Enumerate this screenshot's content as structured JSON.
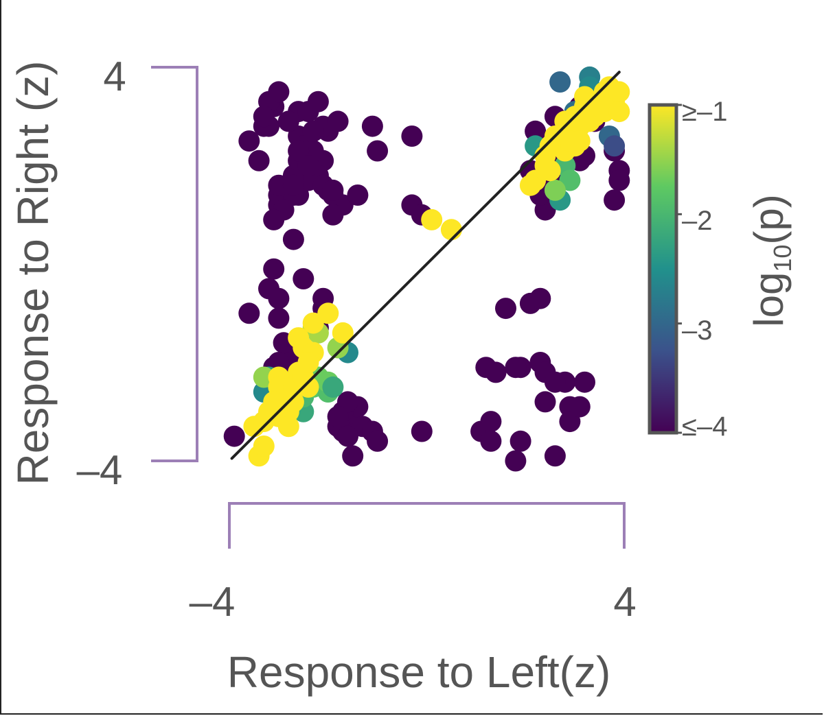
{
  "chart_data": {
    "type": "scatter",
    "title": "",
    "xlabel": "Response to Left(z)",
    "ylabel": "Response to Right (z)",
    "xlim": [
      -4,
      4
    ],
    "ylim": [
      -4,
      4
    ],
    "x_ticks": [
      "–4",
      "4"
    ],
    "y_ticks": [
      "4",
      "–4"
    ],
    "grid": false,
    "reference_line": {
      "from": [
        -4,
        -4
      ],
      "to": [
        4,
        4
      ]
    },
    "colorbar": {
      "label_main": "log",
      "label_sub": "10",
      "label_tail": "(p)",
      "ticks": [
        "≥–1",
        "–2",
        "–3",
        "≤–4"
      ],
      "tick_values": [
        -1,
        -2,
        -3,
        -4
      ],
      "range": [
        -4,
        -1
      ],
      "colormap": "viridis"
    },
    "colors": {
      "bracket": "#9c7fb6",
      "axis_text": "#555555",
      "diagonal": "#222222",
      "colorbar_border": "#555555"
    },
    "series": [
      {
        "points": [
          [
            -3.9,
            -3.5,
            -4
          ],
          [
            -3.1,
            3.2,
            -4
          ],
          [
            -3.2,
            3.3,
            -4
          ],
          [
            -3.3,
            2.8,
            -4
          ],
          [
            -3.2,
            2.8,
            -4
          ],
          [
            -3.6,
            2.5,
            -4
          ],
          [
            -2.6,
            2.6,
            -4
          ],
          [
            -2.5,
            2.1,
            -4
          ],
          [
            -2.4,
            2.4,
            -4
          ],
          [
            -2.1,
            2.1,
            -4
          ],
          [
            -2.4,
            1.7,
            -4
          ],
          [
            -2.7,
            1.8,
            -4
          ],
          [
            -2.6,
            1.4,
            -4
          ],
          [
            -3.0,
            1.2,
            -4
          ],
          [
            -3.0,
            1.4,
            -4
          ],
          [
            -2.6,
            2.1,
            -4
          ],
          [
            -2.7,
            1.4,
            -4
          ],
          [
            -2.0,
            2.7,
            -4
          ],
          [
            -2.5,
            2.4,
            -4
          ],
          [
            -2.3,
            2.3,
            -4
          ],
          [
            -2.7,
            0.5,
            -4
          ],
          [
            -2.2,
            1.8,
            -4
          ],
          [
            -2.0,
            1.5,
            -4
          ],
          [
            -2.1,
            1.6,
            -4
          ],
          [
            -1.7,
            1.2,
            -4
          ],
          [
            -1.9,
            1.4,
            -4
          ],
          [
            -1.4,
            1.4,
            -4
          ],
          [
            -0.3,
            2.6,
            -4
          ],
          [
            -2.6,
            2.3,
            -4
          ],
          [
            -2.1,
            2.8,
            -4
          ],
          [
            -1.0,
            2.3,
            -4
          ],
          [
            -2.6,
            3.1,
            -4
          ],
          [
            -2.9,
            1.1,
            -4
          ],
          [
            -3.1,
            0.9,
            -4
          ],
          [
            -2.3,
            2.7,
            -4
          ],
          [
            -1.9,
            1.5,
            -4
          ],
          [
            -3.2,
            -0.5,
            -4
          ],
          [
            -3.1,
            -0.1,
            -4
          ],
          [
            -2.5,
            -0.3,
            -4
          ],
          [
            -2.1,
            -0.7,
            -4
          ],
          [
            -2.1,
            -0.9,
            -4
          ],
          [
            -3.0,
            -0.7,
            -4
          ],
          [
            -3.6,
            -1.0,
            -4
          ],
          [
            -3.1,
            -2.1,
            -4
          ],
          [
            -3.0,
            -1.1,
            -4
          ],
          [
            -2.8,
            -2.0,
            -4
          ],
          [
            -2.6,
            -1.8,
            -4
          ],
          [
            -2.9,
            -1.6,
            -4
          ],
          [
            -3.0,
            -2.0,
            -4
          ],
          [
            -2.2,
            -1.3,
            -4
          ],
          [
            -1.6,
            -3.1,
            -4
          ],
          [
            -1.7,
            -3.4,
            -4
          ],
          [
            -1.4,
            -2.9,
            -4
          ],
          [
            -1.3,
            -3.3,
            -4
          ],
          [
            -1.7,
            -3.0,
            -4
          ],
          [
            -1.6,
            -2.8,
            -4
          ],
          [
            -1.1,
            -3.4,
            -4
          ],
          [
            -1.8,
            -3.3,
            -4
          ],
          [
            -1.6,
            -3.5,
            -4
          ],
          [
            -1.5,
            -3.9,
            -4
          ],
          [
            -1.0,
            -3.6,
            -4
          ],
          [
            -1.8,
            -3.1,
            -4
          ],
          [
            -0.1,
            -3.4,
            -4
          ],
          [
            1.1,
            -3.4,
            -4
          ],
          [
            1.3,
            -3.2,
            -4
          ],
          [
            1.3,
            -3.6,
            -4
          ],
          [
            1.9,
            -3.6,
            -4
          ],
          [
            2.3,
            -2.0,
            -4
          ],
          [
            2.4,
            -2.2,
            -4
          ],
          [
            2.8,
            -2.4,
            -4
          ],
          [
            2.4,
            -2.8,
            -4
          ],
          [
            2.6,
            -2.4,
            -4
          ],
          [
            2.9,
            -2.9,
            -4
          ],
          [
            2.9,
            -3.2,
            -4
          ],
          [
            3.1,
            -2.9,
            -4
          ],
          [
            3.2,
            -2.4,
            -4
          ],
          [
            2.6,
            -3.9,
            -4
          ],
          [
            1.8,
            -4.0,
            -4
          ],
          [
            1.9,
            -2.1,
            -4
          ],
          [
            1.2,
            -2.1,
            -4
          ],
          [
            1.4,
            -2.2,
            -4
          ],
          [
            1.8,
            -2.1,
            -4
          ],
          [
            2.1,
            -0.8,
            -4
          ],
          [
            2.3,
            -0.7,
            -4
          ],
          [
            1.6,
            -0.9,
            -4
          ],
          [
            2.4,
            1.1,
            -4
          ],
          [
            2.3,
            1.4,
            -4
          ],
          [
            2.1,
            1.9,
            -4
          ],
          [
            2.2,
            2.7,
            -4
          ],
          [
            2.6,
            3.0,
            -4
          ],
          [
            2.7,
            2.0,
            -4
          ],
          [
            3.1,
            2.1,
            -4
          ],
          [
            3.2,
            2.2,
            -4
          ],
          [
            3.8,
            2.3,
            -4
          ],
          [
            3.6,
            3.4,
            -4
          ],
          [
            3.9,
            1.9,
            -4
          ],
          [
            3.9,
            1.7,
            -4
          ],
          [
            3.4,
            2.9,
            -4
          ],
          [
            3.1,
            3.2,
            -4
          ],
          [
            -1.1,
            2.8,
            -4
          ],
          [
            -1.8,
            2.9,
            -4
          ],
          [
            -2.4,
            3.1,
            -4
          ],
          [
            -2.8,
            2.9,
            -4
          ],
          [
            -2.2,
            3.3,
            -4
          ],
          [
            -3.0,
            3.5,
            -4
          ],
          [
            -3.4,
            2.1,
            -4
          ],
          [
            -3.0,
            1.6,
            -4
          ],
          [
            -3.3,
            3.0,
            -4
          ],
          [
            -2.4,
            2.0,
            -4
          ],
          [
            -2.7,
            1.6,
            -4
          ],
          [
            -1.9,
            1.0,
            -4
          ],
          [
            -0.3,
            1.2,
            -4
          ],
          [
            2.6,
            1.4,
            -4
          ],
          [
            -0.1,
            1.0,
            -4
          ],
          [
            3.8,
            1.3,
            -4
          ],
          [
            2.8,
            1.8,
            -4
          ],
          [
            2.4,
            1.7,
            -4
          ]
        ]
      },
      {
        "points": [
          [
            -3.3,
            -2.6,
            -2.6
          ],
          [
            -3.2,
            -2.3,
            -2.4
          ],
          [
            -2.5,
            -3.0,
            -2.2
          ],
          [
            -2.5,
            -2.7,
            -2.0
          ],
          [
            -2.3,
            -2.5,
            -1.8
          ],
          [
            -2.2,
            -2.3,
            -1.7
          ],
          [
            -2.6,
            -2.3,
            -1.6
          ],
          [
            -2.0,
            -2.6,
            -1.9
          ],
          [
            -1.6,
            -1.8,
            -2.6
          ],
          [
            -1.8,
            -1.7,
            -1.5
          ],
          [
            -2.3,
            -1.3,
            -1.3
          ],
          [
            -2.2,
            -1.4,
            -1.4
          ],
          [
            -3.3,
            -2.3,
            -1.5
          ],
          [
            -3.0,
            -2.5,
            -1.8
          ],
          [
            3.3,
            3.8,
            -2.7
          ],
          [
            3.3,
            3.6,
            -2.6
          ],
          [
            2.7,
            3.7,
            -3.0
          ],
          [
            3.0,
            3.1,
            -2.9
          ],
          [
            2.2,
            2.4,
            -2.4
          ],
          [
            2.5,
            2.4,
            -1.5
          ],
          [
            2.8,
            2.0,
            -2.0
          ],
          [
            2.9,
            1.7,
            -1.9
          ],
          [
            2.7,
            1.3,
            -2.4
          ],
          [
            3.7,
            2.6,
            -3.0
          ],
          [
            3.8,
            2.4,
            -3.3
          ],
          [
            2.6,
            1.5,
            -1.6
          ],
          [
            -2.0,
            -2.4,
            -1.7
          ],
          [
            -1.9,
            -2.5,
            -2.2
          ]
        ]
      },
      {
        "points": [
          [
            -3.5,
            -3.3,
            -1
          ],
          [
            -3.3,
            -3.2,
            -1
          ],
          [
            -3.4,
            -3.9,
            -1
          ],
          [
            -3.3,
            -3.7,
            -1
          ],
          [
            -3.0,
            -3.1,
            -1
          ],
          [
            -2.8,
            -3.0,
            -1
          ],
          [
            -2.9,
            -2.7,
            -1
          ],
          [
            -3.0,
            -2.3,
            -1
          ],
          [
            -3.0,
            -2.5,
            -1
          ],
          [
            -2.7,
            -2.5,
            -1
          ],
          [
            -2.6,
            -2.2,
            -1
          ],
          [
            -2.7,
            -2.8,
            -1
          ],
          [
            -2.5,
            -1.7,
            -1
          ],
          [
            -2.6,
            -1.5,
            -1
          ],
          [
            -2.3,
            -1.2,
            -1
          ],
          [
            -2.0,
            -1.0,
            -1
          ],
          [
            -1.7,
            -1.4,
            -1
          ],
          [
            -2.3,
            -1.8,
            -1
          ],
          [
            -2.8,
            -3.3,
            -1
          ],
          [
            -3.1,
            -2.8,
            -1
          ],
          [
            -3.2,
            -3.0,
            -1
          ],
          [
            -2.5,
            -2.3,
            -1
          ],
          [
            -2.4,
            -2.0,
            -1
          ],
          [
            -2.4,
            -2.5,
            -1
          ],
          [
            0.1,
            0.9,
            -1
          ],
          [
            0.5,
            0.7,
            -1
          ],
          [
            2.2,
            1.7,
            -1
          ],
          [
            2.1,
            1.6,
            -1
          ],
          [
            2.5,
            1.9,
            -1
          ],
          [
            2.4,
            2.2,
            -1
          ],
          [
            2.8,
            2.3,
            -1
          ],
          [
            2.6,
            2.6,
            -1
          ],
          [
            3.0,
            2.6,
            -1
          ],
          [
            3.1,
            2.8,
            -1
          ],
          [
            3.0,
            3.0,
            -1
          ],
          [
            3.2,
            3.2,
            -1
          ],
          [
            3.4,
            3.0,
            -1
          ],
          [
            3.2,
            3.4,
            -1
          ],
          [
            3.6,
            3.1,
            -1
          ],
          [
            3.5,
            3.3,
            -1
          ],
          [
            3.6,
            3.5,
            -1
          ],
          [
            3.8,
            3.3,
            -1
          ],
          [
            3.7,
            3.6,
            -1
          ],
          [
            3.9,
            3.5,
            -1
          ],
          [
            3.3,
            2.9,
            -1
          ],
          [
            3.0,
            2.4,
            -1
          ],
          [
            2.8,
            2.9,
            -1
          ],
          [
            2.9,
            2.5,
            -1
          ],
          [
            3.1,
            2.5,
            -1
          ],
          [
            2.4,
            2.0,
            -1
          ],
          [
            2.5,
            2.4,
            -1
          ],
          [
            3.5,
            3.2,
            -1
          ],
          [
            3.9,
            3.1,
            -1
          ]
        ]
      }
    ]
  }
}
